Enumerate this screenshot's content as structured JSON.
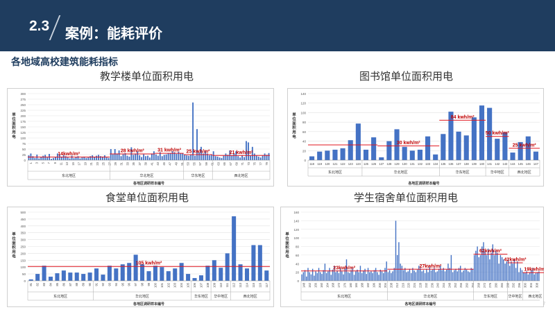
{
  "header": {
    "section_number": "2.3",
    "title": "案例：能耗评价"
  },
  "section_title": "各地域高校建筑能耗指标",
  "colors": {
    "header_bg": "#1f3d5f",
    "bar": "#4472c4",
    "avg_line": "#e0141e",
    "label": "#c00000"
  },
  "chart_data": [
    {
      "id": "teaching",
      "type": "bar",
      "title": "教学楼单位面积用电",
      "ylabel": "单位面积用电",
      "xlabel": "各地区调研样本编号",
      "ylim": [
        0,
        300
      ],
      "yticks": [
        0,
        25,
        50,
        75,
        100,
        125,
        150,
        175,
        200,
        225,
        250,
        275,
        300
      ],
      "xlabels": [
        "1",
        "3",
        "5",
        "7",
        "9",
        "11",
        "13",
        "15",
        "17",
        "19",
        "21",
        "23",
        "25",
        "27",
        "29",
        "31",
        "33",
        "35",
        "37",
        "39",
        "41",
        "43",
        "45",
        "47",
        "49",
        "51",
        "53",
        "55",
        "57",
        "59",
        "61",
        "63",
        "65",
        "67",
        "69",
        "71",
        "73",
        "75",
        "77",
        "79"
      ],
      "values": [
        22,
        30,
        18,
        10,
        25,
        8,
        15,
        20,
        24,
        12,
        28,
        6,
        10,
        14,
        30,
        26,
        16,
        22,
        18,
        12,
        8,
        20,
        9,
        14,
        18,
        8,
        12,
        16,
        10,
        12,
        18,
        22,
        14,
        20,
        24,
        18,
        16,
        22,
        12,
        10,
        50,
        26,
        50,
        30,
        44,
        18,
        26,
        32,
        20,
        16,
        58,
        24,
        30,
        40,
        22,
        14,
        26,
        18,
        20,
        12,
        30,
        40,
        26,
        20,
        36,
        18,
        24,
        26,
        32,
        30,
        40,
        36,
        28,
        38,
        32,
        30,
        24,
        22,
        20,
        26,
        260,
        20,
        140,
        35,
        60,
        30,
        40,
        30,
        22,
        26,
        40,
        18,
        16,
        12,
        10,
        20,
        30,
        24,
        44,
        20,
        30,
        40,
        18,
        12,
        22,
        14,
        86,
        80,
        20,
        60,
        30,
        20,
        16,
        12,
        20,
        30,
        24,
        32
      ],
      "regions": [
        {
          "name": "东北地区",
          "start": 0,
          "end": 40
        },
        {
          "name": "华北地区",
          "start": 40,
          "end": 76
        },
        {
          "name": "华东地区",
          "start": 76,
          "end": 90
        },
        {
          "name": "西北地区",
          "start": 90,
          "end": 118
        }
      ],
      "averages": [
        {
          "label": "14kwh/m²",
          "value": 14,
          "start": 0,
          "end": 40
        },
        {
          "label": "28 kwh/m²",
          "value": 28,
          "start": 40,
          "end": 62
        },
        {
          "label": "31 kwh/m²",
          "value": 31,
          "start": 62,
          "end": 76
        },
        {
          "label": "25 kwh/m²",
          "value": 25,
          "start": 76,
          "end": 90
        },
        {
          "label": "21 kwh/m²",
          "value": 21,
          "start": 90,
          "end": 118
        }
      ]
    },
    {
      "id": "library",
      "type": "bar",
      "title": "图书馆单位面积用电",
      "ylabel": "单位面积用电",
      "xlabel": "各地区调研样本编号",
      "ylim": [
        0,
        140
      ],
      "yticks": [
        0,
        20,
        40,
        60,
        80,
        100,
        120,
        140
      ],
      "xlabels": [
        "118",
        "119",
        "120",
        "121",
        "122",
        "123",
        "124",
        "125",
        "126",
        "127",
        "128",
        "129",
        "130",
        "131",
        "132",
        "133",
        "134",
        "135",
        "136",
        "137",
        "138",
        "139",
        "140",
        "141",
        "142",
        "143",
        "144",
        "145",
        "146",
        "147"
      ],
      "values": [
        8,
        18,
        20,
        22,
        25,
        42,
        77,
        22,
        48,
        6,
        40,
        65,
        28,
        20,
        22,
        50,
        12,
        55,
        102,
        60,
        52,
        90,
        115,
        110,
        45,
        58,
        16,
        38,
        50,
        18
      ],
      "regions": [
        {
          "name": "东北地区",
          "start": 0,
          "end": 7
        },
        {
          "name": "华北地区",
          "start": 7,
          "end": 17
        },
        {
          "name": "华东地区",
          "start": 17,
          "end": 23
        },
        {
          "name": "华中地区",
          "start": 23,
          "end": 26
        },
        {
          "name": "西北地区",
          "start": 26,
          "end": 30
        }
      ],
      "averages": [
        {
          "label": "",
          "value": 32,
          "start": 0,
          "end": 9
        },
        {
          "label": "30 kwh/m²",
          "value": 30,
          "start": 9,
          "end": 17
        },
        {
          "label": "84 kwh/m²",
          "value": 84,
          "start": 17,
          "end": 23
        },
        {
          "label": "50 kwh/m²",
          "value": 50,
          "start": 23,
          "end": 26
        },
        {
          "label": "25 kwh/m²",
          "value": 25,
          "start": 26,
          "end": 30
        }
      ]
    },
    {
      "id": "canteen",
      "type": "bar",
      "title": "食堂单位面积用电",
      "ylabel": "单位面积用电",
      "xlabel": "各地区调研样本编号",
      "ylim": [
        0,
        500
      ],
      "yticks": [
        0,
        50,
        100,
        150,
        200,
        250,
        300,
        350,
        400,
        450,
        500
      ],
      "xlabels": [
        "81",
        "82",
        "83",
        "84",
        "85",
        "86",
        "87",
        "88",
        "89",
        "90",
        "91",
        "92",
        "93",
        "94",
        "95",
        "96",
        "97",
        "98",
        "99",
        "100",
        "101",
        "102",
        "103",
        "104",
        "105",
        "106",
        "107",
        "108",
        "109",
        "110",
        "111",
        "112",
        "113",
        "114",
        "115",
        "116",
        "117"
      ],
      "values": [
        10,
        50,
        110,
        30,
        55,
        75,
        60,
        60,
        50,
        60,
        90,
        45,
        110,
        90,
        120,
        130,
        190,
        120,
        70,
        110,
        100,
        70,
        90,
        130,
        50,
        20,
        40,
        110,
        150,
        95,
        200,
        470,
        120,
        90,
        260,
        260,
        75
      ],
      "regions": [
        {
          "name": "东北地区",
          "start": 0,
          "end": 10
        },
        {
          "name": "华北地区",
          "start": 10,
          "end": 25
        },
        {
          "name": "华东地区",
          "start": 25,
          "end": 28
        },
        {
          "name": "华中地区",
          "start": 28,
          "end": 31
        },
        {
          "name": "西北地区",
          "start": 31,
          "end": 37
        }
      ],
      "averages": [
        {
          "label": "105 kwh/m²",
          "value": 105,
          "start": 0,
          "end": 37
        }
      ]
    },
    {
      "id": "dormitory",
      "type": "bar",
      "title": "学生宿舍单位面积用电",
      "ylabel": "单位面积用电",
      "xlabel": "各地区调研样本编号",
      "ylim": [
        0,
        160
      ],
      "yticks": [
        0,
        20,
        40,
        60,
        80,
        100,
        120,
        140,
        160
      ],
      "xlabels": [
        "148",
        "152",
        "156",
        "160",
        "164",
        "168",
        "172",
        "176",
        "180",
        "184",
        "188",
        "192",
        "196",
        "200",
        "204",
        "208",
        "212",
        "216",
        "220",
        "224",
        "228",
        "232",
        "236",
        "240",
        "244",
        "248",
        "252",
        "256",
        "260",
        "264",
        "268",
        "272",
        "276",
        "280",
        "284",
        "288",
        "292",
        "296",
        "300",
        "304",
        "308"
      ],
      "values": [
        15,
        20,
        25,
        10,
        30,
        20,
        15,
        28,
        12,
        22,
        18,
        30,
        20,
        16,
        25,
        40,
        18,
        22,
        30,
        14,
        26,
        35,
        20,
        24,
        18,
        30,
        22,
        15,
        28,
        50,
        20,
        18,
        25,
        30,
        14,
        22,
        26,
        20,
        35,
        18,
        24,
        28,
        16,
        30,
        20,
        22,
        18,
        25,
        30,
        20,
        14,
        26,
        22,
        18,
        30,
        45,
        20,
        25,
        18,
        22,
        30,
        140,
        60,
        90,
        40,
        35,
        25,
        30,
        20,
        22,
        28,
        18,
        30,
        24,
        20,
        26,
        35,
        30,
        22,
        25,
        18,
        28,
        20,
        32,
        24,
        26,
        30,
        20,
        22,
        28,
        35,
        25,
        30,
        22,
        26,
        40,
        30,
        60,
        20,
        25,
        28,
        22,
        30,
        35,
        20,
        24,
        30,
        26,
        22,
        20,
        30,
        28,
        60,
        70,
        80,
        55,
        60,
        80,
        90,
        70,
        60,
        75,
        50,
        65,
        85,
        60,
        70,
        65,
        40,
        60,
        55,
        50,
        40,
        45,
        50,
        35,
        45,
        40,
        50,
        30,
        45,
        20,
        30,
        25,
        20,
        18,
        22,
        15,
        20,
        25,
        30,
        15,
        18,
        20,
        22
      ],
      "regions": [
        {
          "name": "东北地区",
          "start": 0,
          "end": 56
        },
        {
          "name": "华北地区",
          "start": 56,
          "end": 112
        },
        {
          "name": "华东地区",
          "start": 112,
          "end": 134
        },
        {
          "name": "华中地区",
          "start": 134,
          "end": 144
        },
        {
          "name": "西北地区",
          "start": 144,
          "end": 160
        }
      ],
      "averages": [
        {
          "label": "23kwh/m²",
          "value": 23,
          "start": 0,
          "end": 56
        },
        {
          "label": "27kwh/m²",
          "value": 27,
          "start": 56,
          "end": 112
        },
        {
          "label": "62kwh/m²",
          "value": 62,
          "start": 112,
          "end": 134
        },
        {
          "label": "42kwh/m²",
          "value": 42,
          "start": 134,
          "end": 144
        },
        {
          "label": "19kwh/m²",
          "value": 19,
          "start": 144,
          "end": 160
        }
      ]
    }
  ]
}
